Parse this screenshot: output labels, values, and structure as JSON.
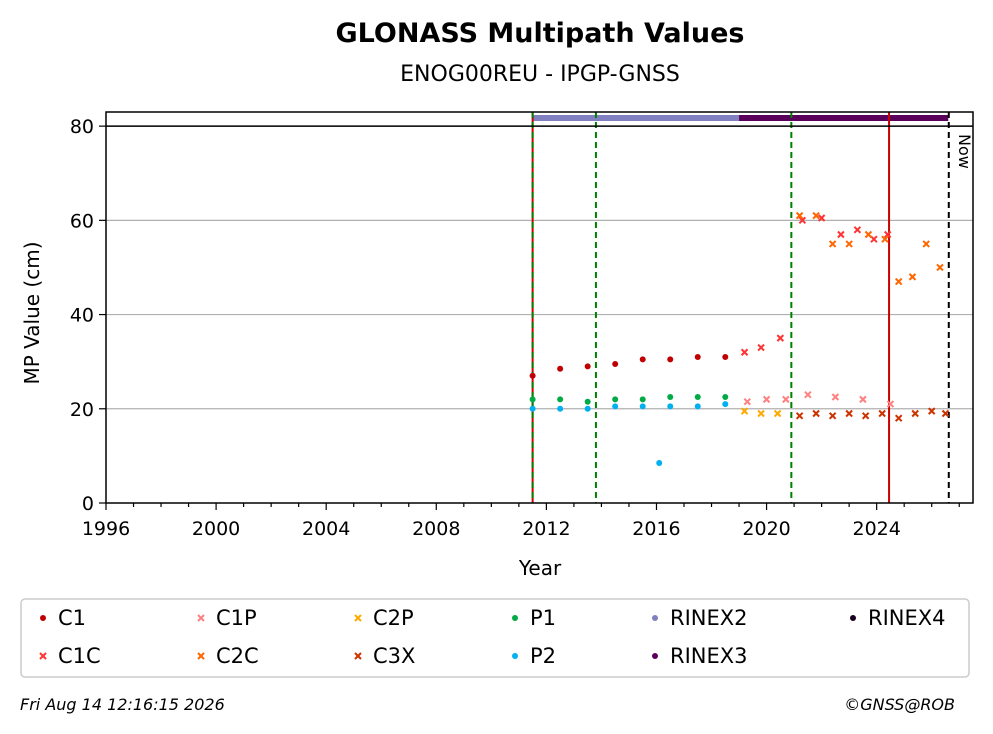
{
  "chart_data": {
    "type": "scatter",
    "title": "GLONASS Multipath Values",
    "subtitle": "ENOG00REU - IPGP-GNSS",
    "xlabel": "Year",
    "ylabel": "MP Value (cm)",
    "xlim": [
      1996,
      2027.5
    ],
    "ylim": [
      0,
      83
    ],
    "xticks": [
      "1996",
      "2000",
      "2004",
      "2008",
      "2012",
      "2016",
      "2020",
      "2024"
    ],
    "yticks": [
      "0",
      "20",
      "40",
      "60",
      "80"
    ],
    "grid": "horizontal",
    "legend_position": "bottom",
    "series": [
      {
        "name": "C1",
        "color": "#c00000",
        "marker": "circle",
        "points": [
          [
            2011.5,
            27
          ],
          [
            2012.5,
            28.5
          ],
          [
            2013.5,
            29
          ],
          [
            2014.5,
            29.5
          ],
          [
            2015.5,
            30.5
          ],
          [
            2016.5,
            30.5
          ],
          [
            2017.5,
            31
          ],
          [
            2018.5,
            31
          ]
        ]
      },
      {
        "name": "C1C",
        "color": "#ff3333",
        "marker": "x",
        "points": [
          [
            2019.2,
            32
          ],
          [
            2019.8,
            33
          ],
          [
            2020.5,
            35
          ],
          [
            2021.3,
            60
          ],
          [
            2022.0,
            60.5
          ],
          [
            2022.7,
            57
          ],
          [
            2023.3,
            58
          ],
          [
            2023.9,
            56
          ],
          [
            2024.4,
            57
          ]
        ]
      },
      {
        "name": "C1P",
        "color": "#ff8080",
        "marker": "x",
        "points": [
          [
            2019.3,
            21.5
          ],
          [
            2020.0,
            22
          ],
          [
            2020.7,
            22
          ],
          [
            2021.5,
            23
          ],
          [
            2022.5,
            22.5
          ],
          [
            2023.5,
            22
          ],
          [
            2024.5,
            21
          ]
        ]
      },
      {
        "name": "C2C",
        "color": "#ff6600",
        "marker": "x",
        "points": [
          [
            2021.2,
            61
          ],
          [
            2021.8,
            61
          ],
          [
            2022.4,
            55
          ],
          [
            2023.0,
            55
          ],
          [
            2023.7,
            57
          ],
          [
            2024.3,
            56
          ],
          [
            2024.8,
            47
          ],
          [
            2025.3,
            48
          ],
          [
            2025.8,
            55
          ],
          [
            2026.3,
            50
          ]
        ]
      },
      {
        "name": "C2P",
        "color": "#ffaa00",
        "marker": "x",
        "points": [
          [
            2019.2,
            19.5
          ],
          [
            2019.8,
            19
          ],
          [
            2020.4,
            19
          ]
        ]
      },
      {
        "name": "C3X",
        "color": "#cc3300",
        "marker": "x",
        "points": [
          [
            2021.2,
            18.5
          ],
          [
            2021.8,
            19
          ],
          [
            2022.4,
            18.5
          ],
          [
            2023.0,
            19
          ],
          [
            2023.6,
            18.5
          ],
          [
            2024.2,
            19
          ],
          [
            2024.8,
            18
          ],
          [
            2025.4,
            19
          ],
          [
            2026.0,
            19.5
          ],
          [
            2026.5,
            19
          ]
        ]
      },
      {
        "name": "P1",
        "color": "#00aa44",
        "marker": "circle",
        "points": [
          [
            2011.5,
            22
          ],
          [
            2012.5,
            22
          ],
          [
            2013.5,
            21.5
          ],
          [
            2014.5,
            22
          ],
          [
            2015.5,
            22
          ],
          [
            2016.5,
            22.5
          ],
          [
            2017.5,
            22.5
          ],
          [
            2018.5,
            22.5
          ]
        ]
      },
      {
        "name": "P2",
        "color": "#00b0f0",
        "marker": "circle",
        "points": [
          [
            2011.5,
            20
          ],
          [
            2012.5,
            20
          ],
          [
            2013.5,
            20
          ],
          [
            2014.5,
            20.5
          ],
          [
            2015.5,
            20.5
          ],
          [
            2016.1,
            8.5
          ],
          [
            2016.5,
            20.5
          ],
          [
            2017.5,
            20.5
          ],
          [
            2018.5,
            21
          ]
        ]
      }
    ],
    "legend": [
      {
        "name": "C1",
        "color": "#c00000",
        "marker": "circle"
      },
      {
        "name": "C1P",
        "color": "#ff8080",
        "marker": "x"
      },
      {
        "name": "C2P",
        "color": "#ffaa00",
        "marker": "x"
      },
      {
        "name": "P1",
        "color": "#00aa44",
        "marker": "circle"
      },
      {
        "name": "RINEX2",
        "color": "#8080c0",
        "marker": "circle"
      },
      {
        "name": "RINEX4",
        "color": "#1a0020",
        "marker": "circle"
      },
      {
        "name": "C1C",
        "color": "#ff3333",
        "marker": "x"
      },
      {
        "name": "C2C",
        "color": "#ff6600",
        "marker": "x"
      },
      {
        "name": "C3X",
        "color": "#cc3300",
        "marker": "x"
      },
      {
        "name": "P2",
        "color": "#00b0f0",
        "marker": "circle"
      },
      {
        "name": "RINEX3",
        "color": "#5a005a",
        "marker": "circle"
      }
    ],
    "rinex_bars": [
      {
        "name": "RINEX2",
        "color": "#8080c0",
        "start": 2011.5,
        "end": 2019.0
      },
      {
        "name": "RINEX3",
        "color": "#5a005a",
        "start": 2019.0,
        "end": 2026.6
      }
    ],
    "vertical_lines": [
      {
        "x": 2011.5,
        "color": "#cc0000",
        "style": "solid"
      },
      {
        "x": 2011.5,
        "color": "#008000",
        "style": "dashed"
      },
      {
        "x": 2013.8,
        "color": "#008000",
        "style": "dashed"
      },
      {
        "x": 2020.9,
        "color": "#008000",
        "style": "dashed"
      },
      {
        "x": 2024.45,
        "color": "#cc0000",
        "style": "solid"
      },
      {
        "x": 2026.62,
        "color": "#000000",
        "style": "dashed"
      }
    ],
    "now_label": "Now"
  },
  "footer": {
    "left": "Fri Aug 14 12:16:15 2026",
    "right": "©GNSS@ROB"
  }
}
